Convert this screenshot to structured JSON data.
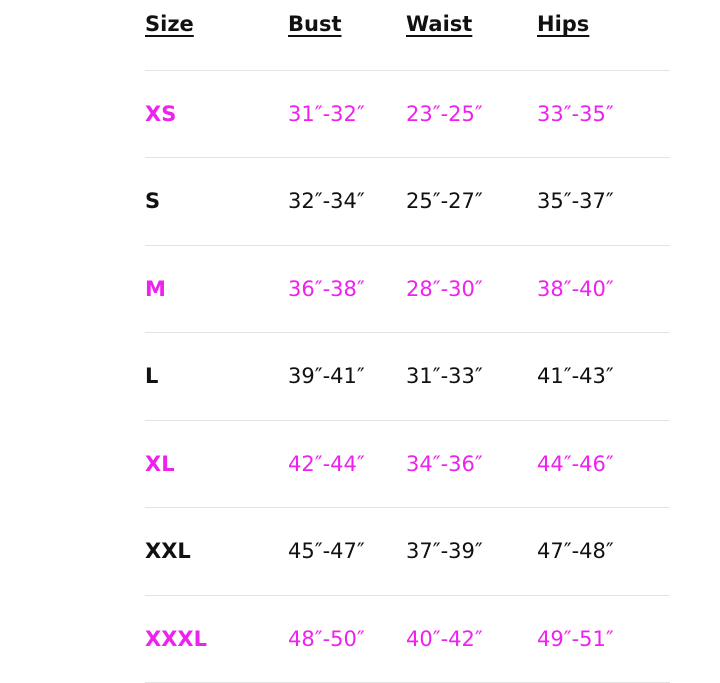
{
  "table": {
    "header": [
      "Size",
      "Bust",
      "Waist",
      "Hips"
    ],
    "rows": [
      [
        "XS",
        "31″-32″",
        "23″-25″",
        "33″-35″"
      ],
      [
        "S",
        "32″-34″",
        "25″-27″",
        "35″-37″"
      ],
      [
        "M",
        "36″-38″",
        "28″-30″",
        "38″-40″"
      ],
      [
        "L",
        "39″-41″",
        "31″-33″",
        "41″-43″"
      ],
      [
        "XL",
        "42″-44″",
        "34″-36″",
        "44″-46″"
      ],
      [
        "XXL",
        "45″-47″",
        "37″-39″",
        "47″-48″"
      ],
      [
        "XXXL",
        "48″-50″",
        "40″-42″",
        "49″-51″"
      ]
    ]
  }
}
